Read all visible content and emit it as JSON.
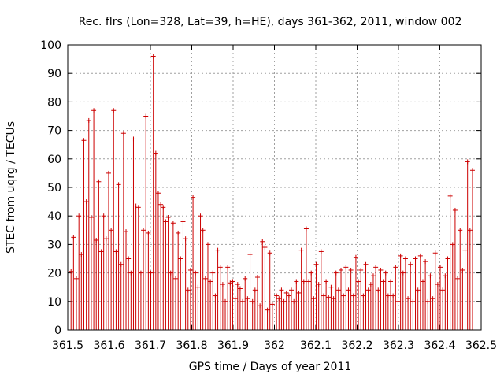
{
  "chart_data": {
    "type": "scatter",
    "title": "Rec. flrs (Lon=328, Lat=39, h=HE), days 361-362, 2011, window 002",
    "xlabel": "GPS time / Days of year 2011",
    "ylabel": "STEC from uqrg / TECUs",
    "xlim": [
      361.5,
      362.5
    ],
    "ylim": [
      0,
      100
    ],
    "grid": true,
    "x_ticks": [
      "361.5",
      "361.6",
      "361.7",
      "361.8",
      "361.9",
      "362",
      "362.1",
      "362.2",
      "362.3",
      "362.4",
      "362.5"
    ],
    "y_ticks": [
      "0",
      "10",
      "20",
      "30",
      "40",
      "50",
      "60",
      "70",
      "80",
      "90",
      "100"
    ],
    "series_color": "#cc0000",
    "error_bar_lower": 0,
    "points": [
      [
        361.508,
        20.5
      ],
      [
        361.514,
        32.5
      ],
      [
        361.521,
        18
      ],
      [
        361.527,
        40
      ],
      [
        361.533,
        26.5
      ],
      [
        361.539,
        66.5
      ],
      [
        361.545,
        45
      ],
      [
        361.551,
        73.5
      ],
      [
        361.557,
        39.5
      ],
      [
        361.563,
        77
      ],
      [
        361.569,
        31.5
      ],
      [
        361.575,
        52
      ],
      [
        361.581,
        27.5
      ],
      [
        361.587,
        40
      ],
      [
        361.593,
        32
      ],
      [
        361.599,
        55
      ],
      [
        361.605,
        35
      ],
      [
        361.611,
        77
      ],
      [
        361.617,
        27.5
      ],
      [
        361.623,
        51
      ],
      [
        361.629,
        23
      ],
      [
        361.635,
        69
      ],
      [
        361.641,
        34.5
      ],
      [
        361.647,
        25
      ],
      [
        361.653,
        20
      ],
      [
        361.659,
        67
      ],
      [
        361.665,
        43.5
      ],
      [
        361.671,
        43
      ],
      [
        361.677,
        20
      ],
      [
        361.683,
        35
      ],
      [
        361.689,
        75
      ],
      [
        361.695,
        34
      ],
      [
        361.701,
        20
      ],
      [
        361.707,
        96
      ],
      [
        361.713,
        62
      ],
      [
        361.719,
        48
      ],
      [
        361.725,
        44
      ],
      [
        361.731,
        43
      ],
      [
        361.737,
        38
      ],
      [
        361.743,
        39.5
      ],
      [
        361.749,
        20
      ],
      [
        361.755,
        37.5
      ],
      [
        361.761,
        18
      ],
      [
        361.767,
        34
      ],
      [
        361.773,
        25
      ],
      [
        361.779,
        38
      ],
      [
        361.785,
        32
      ],
      [
        361.791,
        14
      ],
      [
        361.797,
        21
      ],
      [
        361.803,
        46.5
      ],
      [
        361.809,
        20
      ],
      [
        361.815,
        15
      ],
      [
        361.821,
        40
      ],
      [
        361.827,
        35
      ],
      [
        361.833,
        18
      ],
      [
        361.839,
        30
      ],
      [
        361.845,
        17
      ],
      [
        361.851,
        20
      ],
      [
        361.857,
        12
      ],
      [
        361.863,
        28
      ],
      [
        361.869,
        22
      ],
      [
        361.875,
        16
      ],
      [
        361.881,
        10
      ],
      [
        361.887,
        22
      ],
      [
        361.893,
        16.5
      ],
      [
        361.899,
        17
      ],
      [
        361.905,
        11
      ],
      [
        361.911,
        16
      ],
      [
        361.917,
        14.5
      ],
      [
        361.923,
        10
      ],
      [
        361.929,
        18
      ],
      [
        361.935,
        11
      ],
      [
        361.941,
        26.5
      ],
      [
        361.947,
        10
      ],
      [
        361.953,
        14
      ],
      [
        361.959,
        18.5
      ],
      [
        361.965,
        8.5
      ],
      [
        361.971,
        31
      ],
      [
        361.977,
        29
      ],
      [
        361.983,
        7
      ],
      [
        361.989,
        27
      ],
      [
        361.995,
        9
      ],
      [
        362.005,
        12
      ],
      [
        362.011,
        11
      ],
      [
        362.017,
        14
      ],
      [
        362.023,
        10
      ],
      [
        362.029,
        13
      ],
      [
        362.035,
        12
      ],
      [
        362.041,
        14
      ],
      [
        362.047,
        10
      ],
      [
        362.053,
        17
      ],
      [
        362.059,
        13
      ],
      [
        362.065,
        28
      ],
      [
        362.071,
        17
      ],
      [
        362.077,
        35.5
      ],
      [
        362.083,
        17
      ],
      [
        362.089,
        20
      ],
      [
        362.095,
        11
      ],
      [
        362.101,
        23
      ],
      [
        362.107,
        16
      ],
      [
        362.113,
        27.5
      ],
      [
        362.119,
        12
      ],
      [
        362.125,
        17
      ],
      [
        362.131,
        11.5
      ],
      [
        362.137,
        15
      ],
      [
        362.143,
        11
      ],
      [
        362.149,
        20
      ],
      [
        362.155,
        14
      ],
      [
        362.161,
        21
      ],
      [
        362.167,
        12
      ],
      [
        362.173,
        22
      ],
      [
        362.179,
        14
      ],
      [
        362.185,
        21
      ],
      [
        362.191,
        12
      ],
      [
        362.197,
        25.5
      ],
      [
        362.203,
        17
      ],
      [
        362.209,
        21
      ],
      [
        362.215,
        12
      ],
      [
        362.221,
        23
      ],
      [
        362.227,
        14
      ],
      [
        362.233,
        16
      ],
      [
        362.239,
        19
      ],
      [
        362.245,
        22
      ],
      [
        362.251,
        14
      ],
      [
        362.257,
        21
      ],
      [
        362.263,
        17
      ],
      [
        362.269,
        20
      ],
      [
        362.275,
        12
      ],
      [
        362.281,
        17
      ],
      [
        362.287,
        12
      ],
      [
        362.293,
        22
      ],
      [
        362.299,
        10
      ],
      [
        362.305,
        26
      ],
      [
        362.311,
        20
      ],
      [
        362.317,
        25
      ],
      [
        362.323,
        11
      ],
      [
        362.329,
        23
      ],
      [
        362.335,
        10
      ],
      [
        362.341,
        25
      ],
      [
        362.347,
        14
      ],
      [
        362.353,
        26
      ],
      [
        362.359,
        17
      ],
      [
        362.365,
        24
      ],
      [
        362.371,
        10
      ],
      [
        362.377,
        19
      ],
      [
        362.383,
        11
      ],
      [
        362.389,
        27
      ],
      [
        362.395,
        16
      ],
      [
        362.401,
        22
      ],
      [
        362.407,
        14
      ],
      [
        362.413,
        19
      ],
      [
        362.419,
        25
      ],
      [
        362.425,
        47
      ],
      [
        362.431,
        30
      ],
      [
        362.437,
        42
      ],
      [
        362.443,
        18
      ],
      [
        362.449,
        35
      ],
      [
        362.455,
        21
      ],
      [
        362.461,
        28
      ],
      [
        362.467,
        59
      ],
      [
        362.473,
        35
      ],
      [
        362.479,
        56
      ]
    ]
  }
}
